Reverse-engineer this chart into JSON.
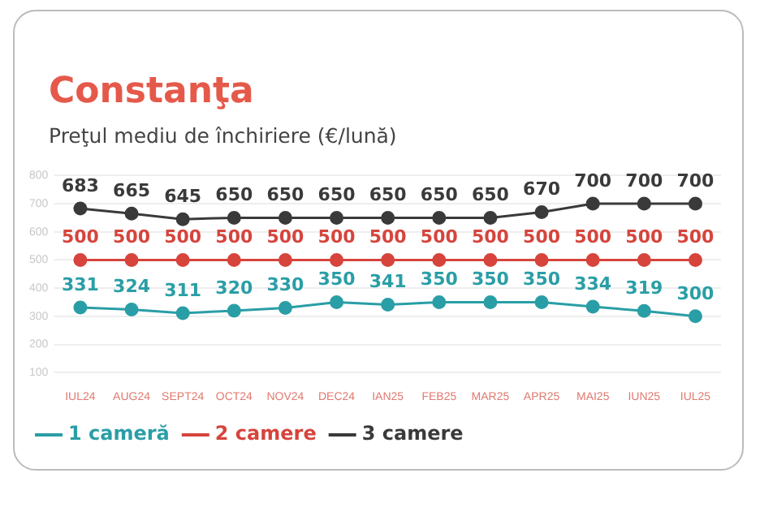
{
  "chart_data": {
    "type": "line",
    "title": "Constanţa",
    "subtitle": "Preţul mediu de închiriere (€/lună)",
    "categories": [
      "IUL24",
      "AUG24",
      "SEPT24",
      "OCT24",
      "NOV24",
      "DEC24",
      "IAN25",
      "FEB25",
      "MAR25",
      "APR25",
      "MAI25",
      "IUN25",
      "IUL25"
    ],
    "series": [
      {
        "name": "1 cameră",
        "color": "#2a9ea6",
        "values": [
          331,
          324,
          311,
          320,
          330,
          350,
          341,
          350,
          350,
          350,
          334,
          319,
          300
        ]
      },
      {
        "name": "2 camere",
        "color": "#d6443c",
        "values": [
          500,
          500,
          500,
          500,
          500,
          500,
          500,
          500,
          500,
          500,
          500,
          500,
          500
        ]
      },
      {
        "name": "3 camere",
        "color": "#3a3a3a",
        "values": [
          683,
          665,
          645,
          650,
          650,
          650,
          650,
          650,
          650,
          670,
          700,
          700,
          700
        ]
      }
    ],
    "ylim": [
      100,
      800
    ],
    "yticks": [
      100,
      200,
      300,
      400,
      500,
      600,
      700,
      800
    ],
    "grid": "y",
    "legend": "bottom left",
    "marker": "circle",
    "line_style": "solid",
    "data_labels": true
  }
}
